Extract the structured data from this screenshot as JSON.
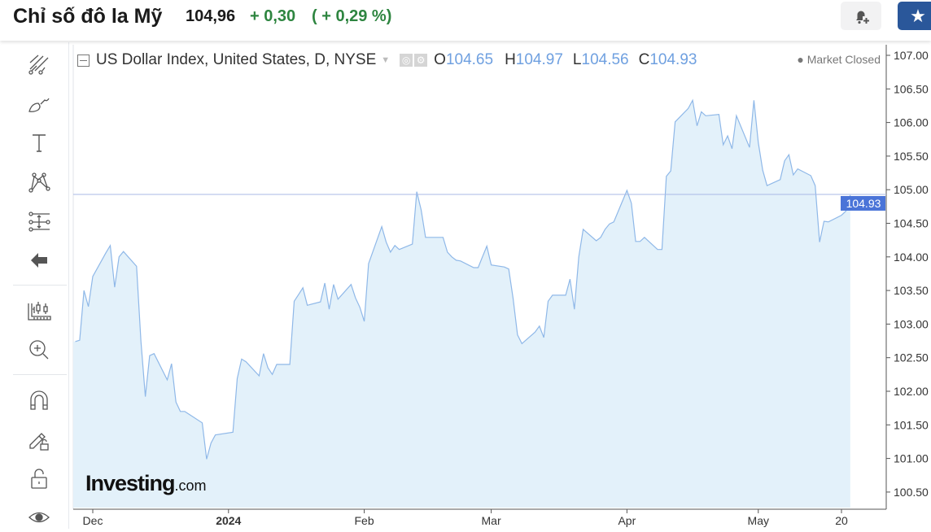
{
  "header": {
    "title": "Chỉ số đô la Mỹ",
    "price": "104,96",
    "change": "+ 0,30",
    "change_pct": "( + 0,29 %)",
    "alert_icon": "bell-plus-icon",
    "watchlist_icon": "star-icon"
  },
  "toolbar": {
    "items": [
      "trend-line-icon",
      "brush-icon",
      "text-icon",
      "pattern-icon",
      "fib-icon",
      "back-arrow-icon",
      "indicators-icon",
      "zoom-in-icon",
      "magnet-icon",
      "lock-drawings-icon",
      "unlock-icon",
      "eye-icon"
    ]
  },
  "legend": {
    "symbol": "US Dollar Index, United States, D, NYSE",
    "o_label": "O",
    "o": "104.65",
    "h_label": "H",
    "h": "104.97",
    "l_label": "L",
    "l": "104.56",
    "c_label": "C",
    "c": "104.93",
    "status": "Market Closed"
  },
  "watermark": {
    "brand": "Investing",
    "suffix": ".com"
  },
  "colors": {
    "line": "#8fb8e8",
    "fill": "#e3f1fa",
    "price_label_bg": "#4a74d8",
    "positive": "#2e8540",
    "star_button": "#2a579a"
  },
  "chart_data": {
    "type": "area",
    "grid": false,
    "ylim": [
      100.25,
      107.1
    ],
    "yticks": [
      "100.50",
      "101.00",
      "101.50",
      "102.00",
      "102.50",
      "103.00",
      "103.50",
      "104.00",
      "104.50",
      "105.00",
      "105.50",
      "106.00",
      "106.50",
      "107.00"
    ],
    "xticks": [
      {
        "label": "Dec",
        "date": "2023-12-01",
        "bold": false
      },
      {
        "label": "2024",
        "date": "2024-01-01",
        "bold": true
      },
      {
        "label": "Feb",
        "date": "2024-02-01",
        "bold": false
      },
      {
        "label": "Mar",
        "date": "2024-03-01",
        "bold": false
      },
      {
        "label": "Apr",
        "date": "2024-04-01",
        "bold": false
      },
      {
        "label": "May",
        "date": "2024-05-01",
        "bold": false
      },
      {
        "label": "20",
        "date": "2024-05-20",
        "bold": false
      }
    ],
    "last_price": "104.93",
    "x": [
      "2023-11-27",
      "2023-11-28",
      "2023-11-29",
      "2023-11-30",
      "2023-12-01",
      "2023-12-04",
      "2023-12-05",
      "2023-12-06",
      "2023-12-07",
      "2023-12-08",
      "2023-12-11",
      "2023-12-12",
      "2023-12-13",
      "2023-12-14",
      "2023-12-15",
      "2023-12-18",
      "2023-12-19",
      "2023-12-20",
      "2023-12-21",
      "2023-12-22",
      "2023-12-26",
      "2023-12-27",
      "2023-12-28",
      "2023-12-29",
      "2024-01-02",
      "2024-01-03",
      "2024-01-04",
      "2024-01-05",
      "2024-01-08",
      "2024-01-09",
      "2024-01-10",
      "2024-01-11",
      "2024-01-12",
      "2024-01-15",
      "2024-01-16",
      "2024-01-17",
      "2024-01-18",
      "2024-01-19",
      "2024-01-22",
      "2024-01-23",
      "2024-01-24",
      "2024-01-25",
      "2024-01-26",
      "2024-01-29",
      "2024-01-30",
      "2024-01-31",
      "2024-02-01",
      "2024-02-02",
      "2024-02-05",
      "2024-02-06",
      "2024-02-07",
      "2024-02-08",
      "2024-02-09",
      "2024-02-12",
      "2024-02-13",
      "2024-02-14",
      "2024-02-15",
      "2024-02-16",
      "2024-02-19",
      "2024-02-20",
      "2024-02-21",
      "2024-02-22",
      "2024-02-23",
      "2024-02-26",
      "2024-02-27",
      "2024-02-28",
      "2024-02-29",
      "2024-03-01",
      "2024-03-04",
      "2024-03-05",
      "2024-03-06",
      "2024-03-07",
      "2024-03-08",
      "2024-03-11",
      "2024-03-12",
      "2024-03-13",
      "2024-03-14",
      "2024-03-15",
      "2024-03-18",
      "2024-03-19",
      "2024-03-20",
      "2024-03-21",
      "2024-03-22",
      "2024-03-25",
      "2024-03-26",
      "2024-03-27",
      "2024-03-28",
      "2024-03-29",
      "2024-04-01",
      "2024-04-02",
      "2024-04-03",
      "2024-04-04",
      "2024-04-05",
      "2024-04-08",
      "2024-04-09",
      "2024-04-10",
      "2024-04-11",
      "2024-04-12",
      "2024-04-15",
      "2024-04-16",
      "2024-04-17",
      "2024-04-18",
      "2024-04-19",
      "2024-04-22",
      "2024-04-23",
      "2024-04-24",
      "2024-04-25",
      "2024-04-26",
      "2024-04-29",
      "2024-04-30",
      "2024-05-01",
      "2024-05-02",
      "2024-05-03",
      "2024-05-06",
      "2024-05-07",
      "2024-05-08",
      "2024-05-09",
      "2024-05-10",
      "2024-05-13",
      "2024-05-14",
      "2024-05-15",
      "2024-05-16",
      "2024-05-17",
      "2024-05-20",
      "2024-05-21",
      "2024-05-22"
    ],
    "values": [
      102.74,
      102.76,
      103.5,
      103.26,
      103.71,
      104.06,
      104.17,
      103.55,
      104.0,
      104.08,
      103.86,
      102.74,
      101.92,
      102.53,
      102.56,
      102.17,
      102.41,
      101.84,
      101.7,
      101.7,
      101.53,
      100.99,
      101.23,
      101.35,
      101.39,
      102.19,
      102.48,
      102.44,
      102.23,
      102.56,
      102.35,
      102.25,
      102.4,
      102.4,
      103.34,
      103.44,
      103.54,
      103.28,
      103.33,
      103.61,
      103.22,
      103.59,
      103.37,
      103.59,
      103.39,
      103.25,
      103.04,
      103.9,
      104.45,
      104.22,
      104.07,
      104.17,
      104.11,
      104.19,
      104.97,
      104.7,
      104.29,
      104.29,
      104.29,
      104.07,
      104.0,
      103.95,
      103.94,
      103.84,
      103.84,
      104.0,
      104.16,
      103.88,
      103.85,
      103.82,
      103.38,
      102.84,
      102.71,
      102.88,
      102.97,
      102.8,
      103.34,
      103.43,
      103.43,
      103.67,
      103.22,
      104.0,
      104.41,
      104.24,
      104.29,
      104.41,
      104.49,
      104.52,
      104.99,
      104.8,
      104.23,
      104.23,
      104.29,
      104.11,
      104.11,
      105.2,
      105.28,
      106.01,
      106.21,
      106.33,
      105.95,
      106.16,
      106.1,
      106.12,
      105.67,
      105.8,
      105.61,
      106.1,
      105.63,
      106.33,
      105.7,
      105.29,
      105.06,
      105.15,
      105.43,
      105.52,
      105.22,
      105.31,
      105.21,
      105.06,
      104.22,
      104.53,
      104.52,
      104.62,
      104.68,
      104.92
    ]
  }
}
